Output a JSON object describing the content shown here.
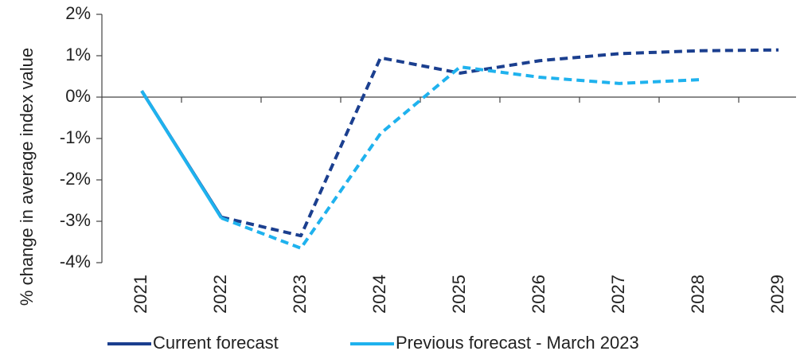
{
  "chart_data": {
    "type": "line",
    "y_label": "% change in average index value",
    "categories": [
      "2021",
      "2022",
      "2023",
      "2024",
      "2025",
      "2026",
      "2027",
      "2028",
      "2029"
    ],
    "series": [
      {
        "name": "Current forecast",
        "color": "#1b3f8f",
        "values": [
          0.15,
          -2.9,
          -3.35,
          0.95,
          0.58,
          0.88,
          1.05,
          1.12,
          1.14
        ]
      },
      {
        "name": "Previous forecast - March 2023",
        "color": "#1fb2ee",
        "values": [
          0.15,
          -2.92,
          -3.65,
          -0.88,
          0.73,
          0.48,
          0.33,
          0.42,
          null
        ]
      }
    ],
    "solid_until": 1,
    "ylim": [
      -4,
      2
    ],
    "yticks": [
      {
        "value": -4,
        "label": "-4%"
      },
      {
        "value": -3,
        "label": "-3%"
      },
      {
        "value": -2,
        "label": "-2%"
      },
      {
        "value": -1,
        "label": "-1%"
      },
      {
        "value": 0,
        "label": "0%"
      },
      {
        "value": 1,
        "label": "1%"
      },
      {
        "value": 2,
        "label": "2%"
      }
    ]
  }
}
